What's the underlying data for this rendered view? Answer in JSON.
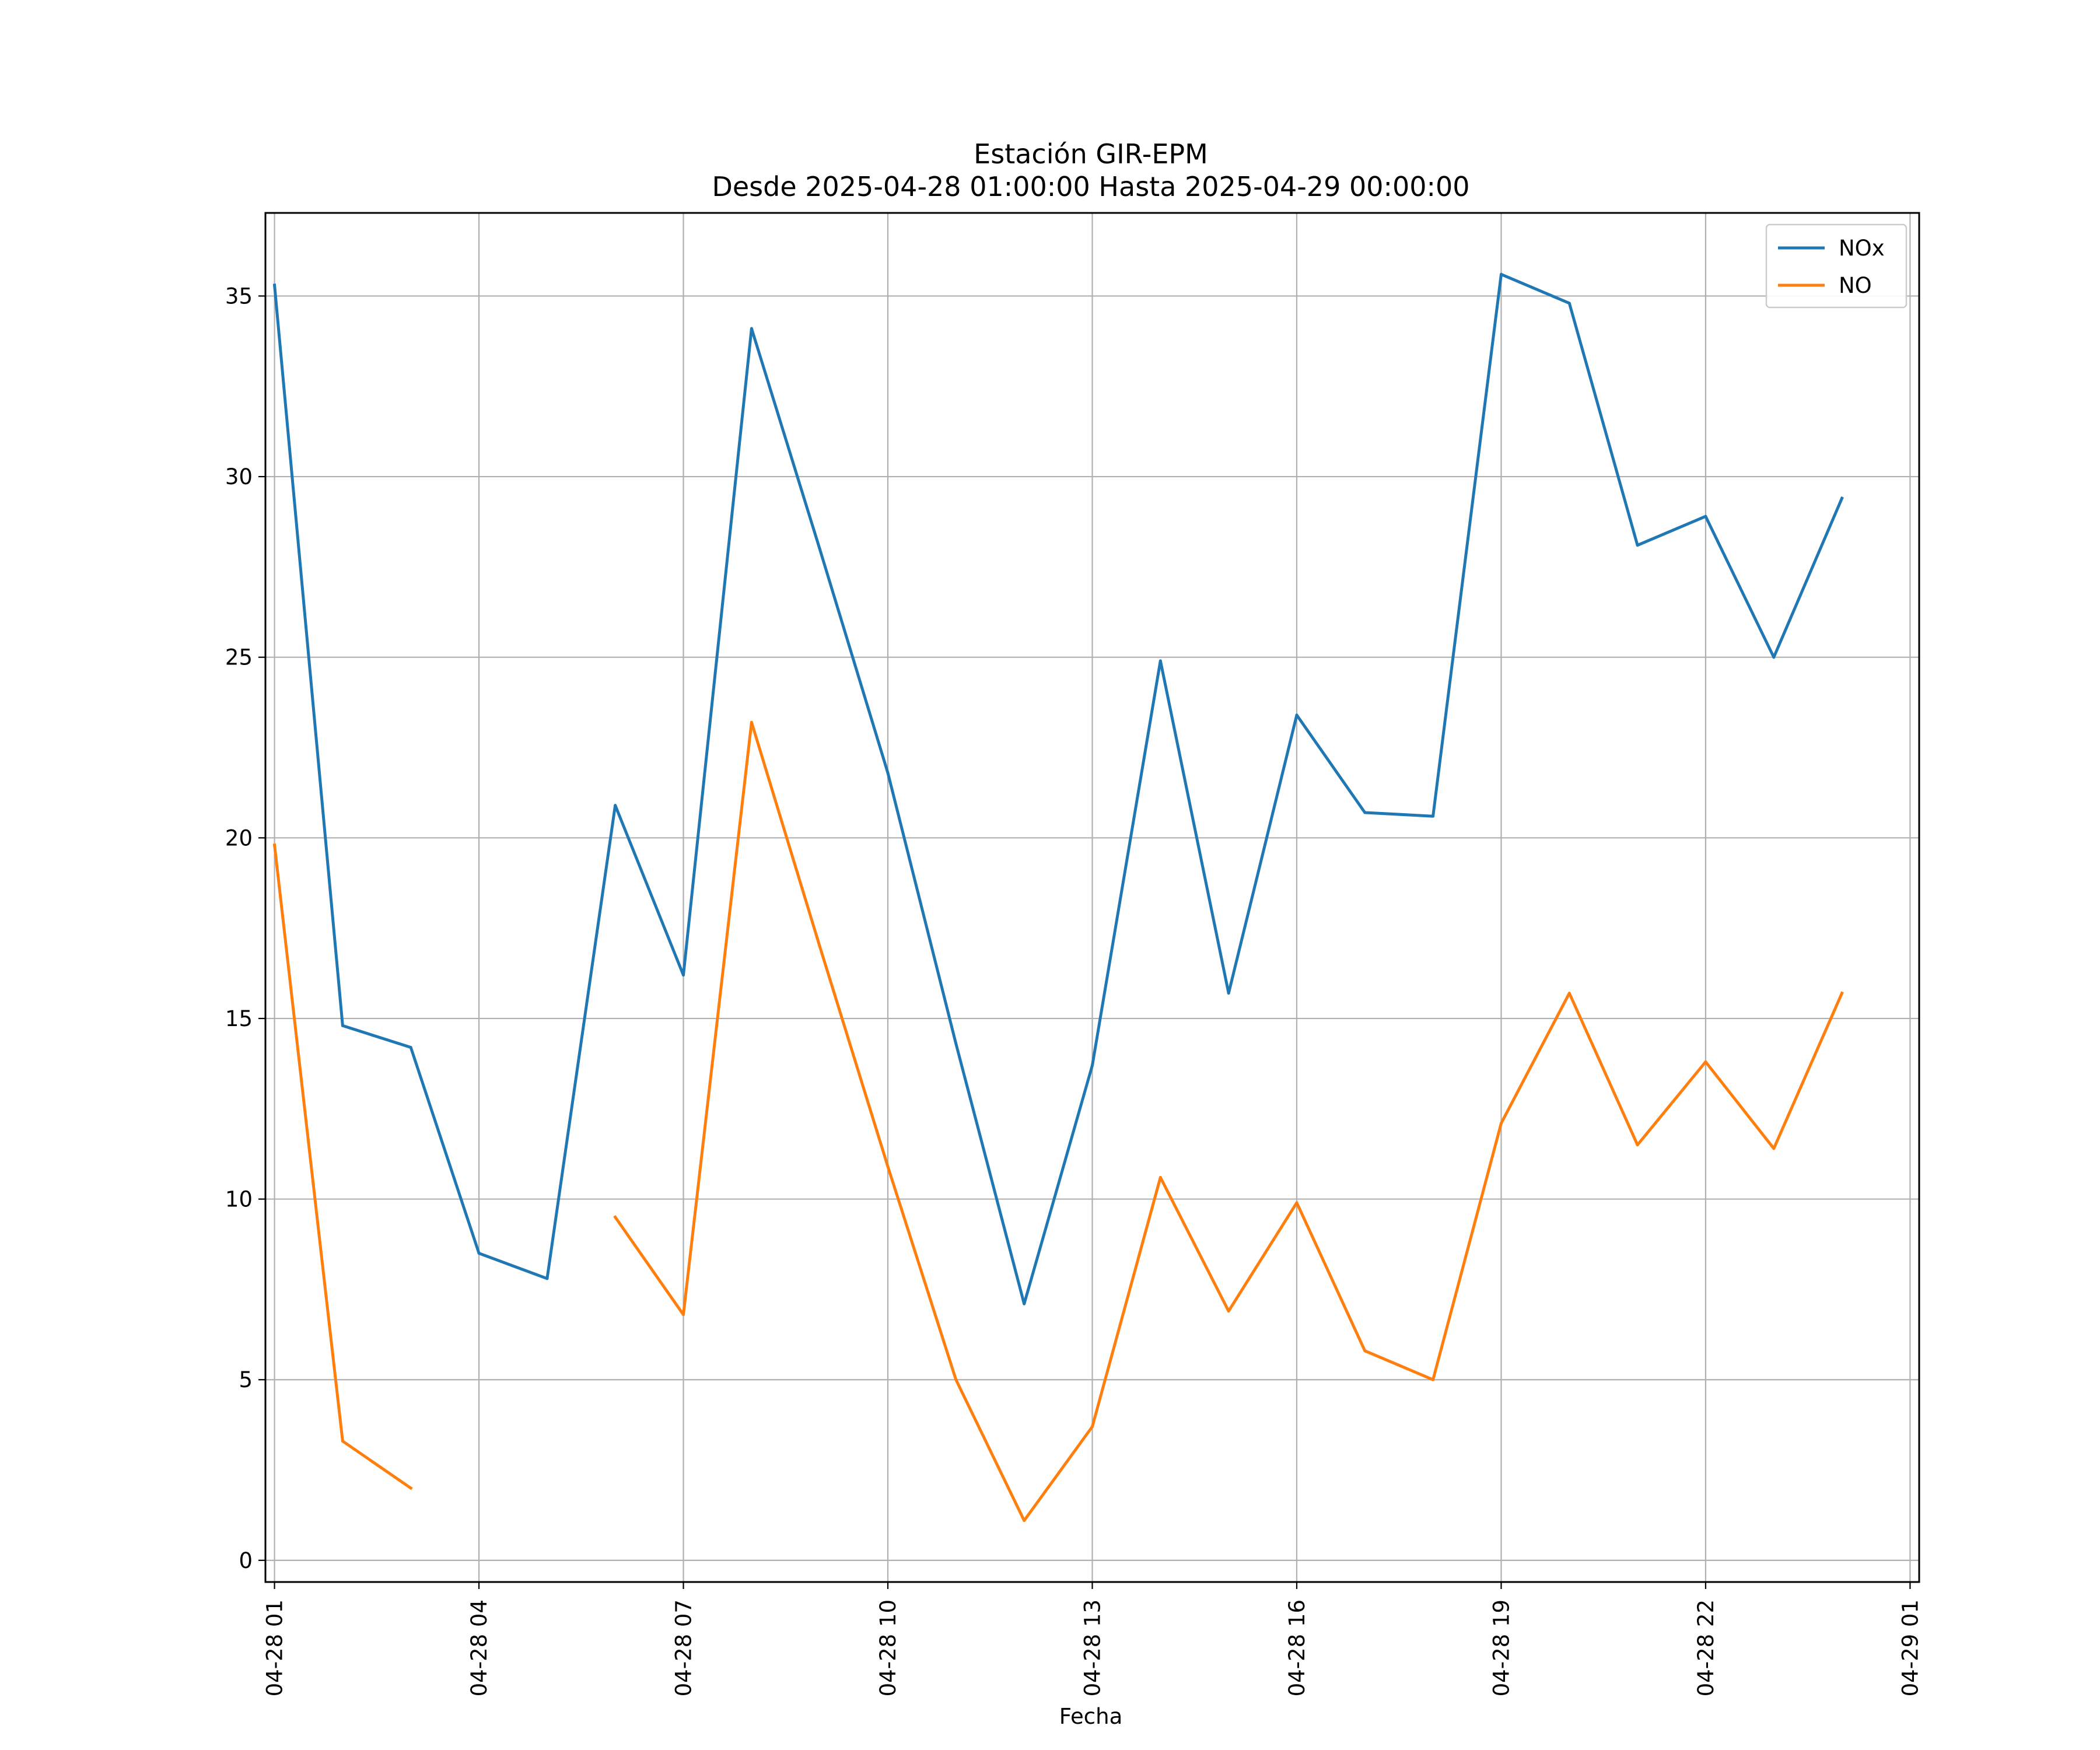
{
  "chart_data": {
    "type": "line",
    "title": "Estación GIR-EPM",
    "subtitle": "Desde 2025-04-28 01:00:00 Hasta 2025-04-29 00:00:00",
    "xlabel": "Fecha",
    "ylabel": "",
    "x": [
      "04-28 01",
      "04-28 02",
      "04-28 03",
      "04-28 04",
      "04-28 05",
      "04-28 06",
      "04-28 07",
      "04-28 08",
      "04-28 09",
      "04-28 10",
      "04-28 11",
      "04-28 12",
      "04-28 13",
      "04-28 14",
      "04-28 15",
      "04-28 16",
      "04-28 17",
      "04-28 18",
      "04-28 19",
      "04-28 20",
      "04-28 21",
      "04-28 22",
      "04-28 23",
      "04-29 00"
    ],
    "xticks": [
      "04-28 01",
      "04-28 04",
      "04-28 07",
      "04-28 10",
      "04-28 13",
      "04-28 16",
      "04-28 19",
      "04-28 22",
      "04-29 01"
    ],
    "yticks": [
      0,
      5,
      10,
      15,
      20,
      25,
      30,
      35
    ],
    "ylim": [
      -0.6,
      37.3
    ],
    "xlim": [
      "04-28 00:52",
      "04-29 01:08"
    ],
    "grid": true,
    "legend": "top-right",
    "series": [
      {
        "name": "NOx",
        "color": "#1f77b4",
        "values": [
          35.3,
          14.8,
          14.2,
          8.5,
          7.8,
          20.9,
          16.2,
          34.1,
          28.0,
          21.8,
          14.3,
          7.1,
          13.7,
          24.9,
          15.7,
          23.4,
          20.7,
          20.6,
          35.6,
          34.8,
          28.1,
          28.9,
          25.0,
          29.4
        ]
      },
      {
        "name": "NO",
        "color": "#ff7f0e",
        "values": [
          19.8,
          3.3,
          2.0,
          null,
          null,
          9.5,
          6.8,
          23.2,
          17.0,
          10.9,
          5.0,
          1.1,
          3.7,
          10.6,
          6.9,
          9.9,
          5.8,
          5.0,
          12.1,
          15.7,
          11.5,
          13.8,
          11.4,
          15.7
        ]
      }
    ]
  }
}
